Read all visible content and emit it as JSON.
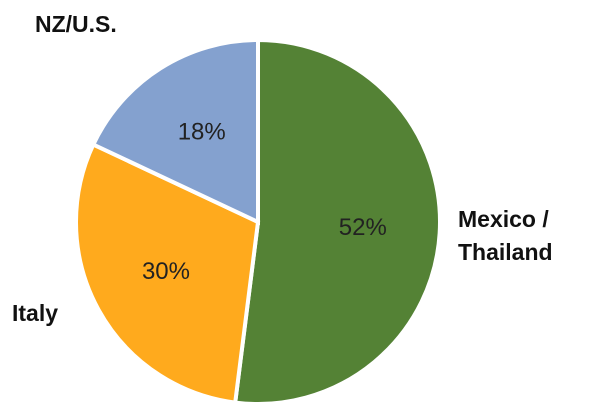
{
  "chart_data": {
    "type": "pie",
    "categories": [
      "Mexico / Thailand",
      "Italy",
      "NZ/U.S."
    ],
    "values": [
      52,
      30,
      18
    ],
    "value_labels": [
      "52%",
      "30%",
      "18%"
    ],
    "colors": [
      "#548235",
      "#ffaa1d",
      "#84a1cf"
    ]
  }
}
